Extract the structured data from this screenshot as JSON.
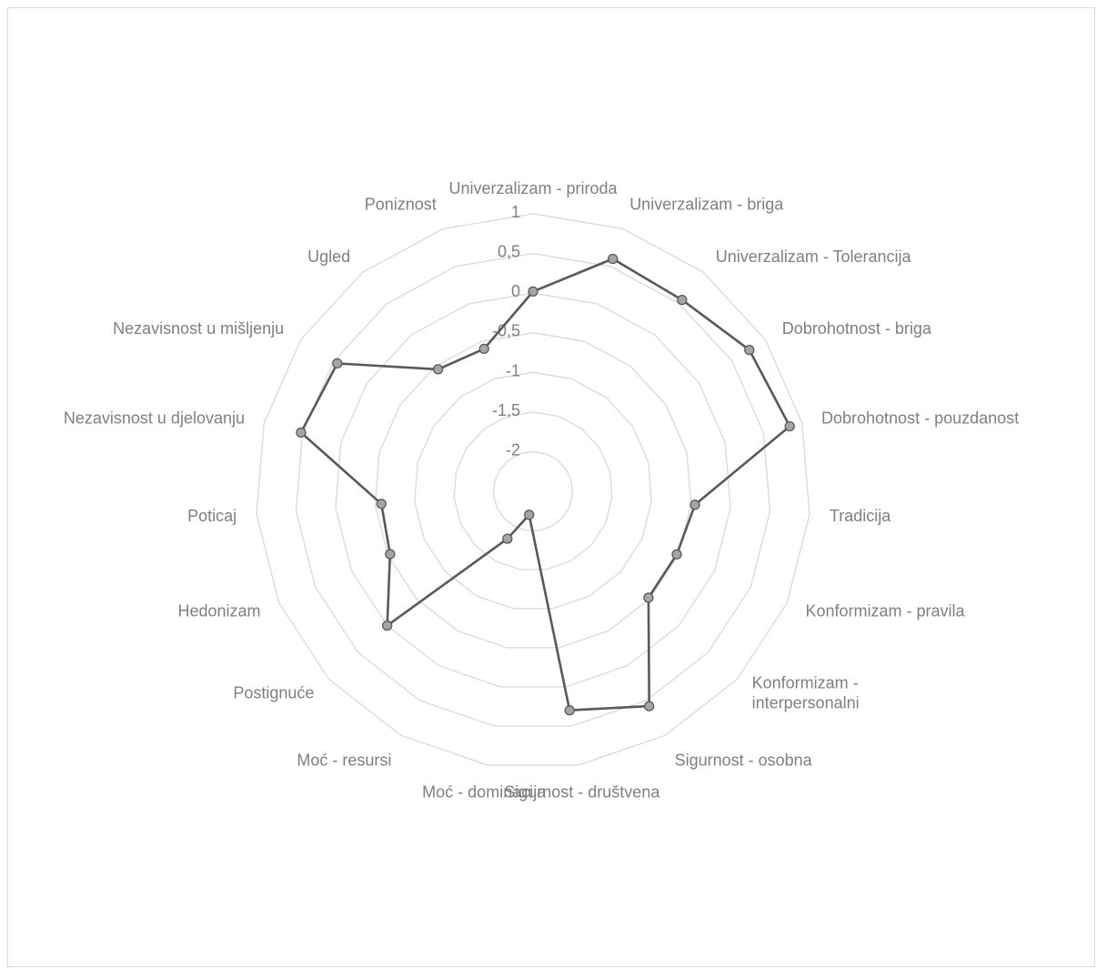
{
  "chart_data": {
    "type": "radar",
    "categories": [
      "Univerzalizam - priroda",
      "Univerzalizam - briga",
      "Univerzalizam - Tolerancija",
      "Dobrohotnost - briga",
      "Dobrohotnost - pouzdanost",
      "Tradicija",
      "Konformizam - pravila",
      "Konformizam - interpersonalni",
      "Sigurnost - osobna",
      "Sigurnost - društvena",
      "Moć - dominacija",
      "Moć - resursi",
      "Postignuće",
      "Hedonizam",
      "Poticaj",
      "Nezavisnost u djelovanju",
      "Nezavisnost u mišljenju",
      "Ugled",
      "Poniznost"
    ],
    "category_lines": [
      [
        "Univerzalizam - priroda"
      ],
      [
        "Univerzalizam - briga"
      ],
      [
        "Univerzalizam - Tolerancija"
      ],
      [
        "Dobrohotnost - briga"
      ],
      [
        "Dobrohotnost - pouzdanost"
      ],
      [
        "Tradicija"
      ],
      [
        "Konformizam - pravila"
      ],
      [
        "Konformizam -",
        "interpersonalni"
      ],
      [
        "Sigurnost - osobna"
      ],
      [
        "Sigurnost - društvena"
      ],
      [
        "Moć - dominacija"
      ],
      [
        "Moć - resursi"
      ],
      [
        "Postignuće"
      ],
      [
        "Hedonizam"
      ],
      [
        "Poticaj"
      ],
      [
        "Nezavisnost u djelovanju"
      ],
      [
        "Nezavisnost u mišljenju"
      ],
      [
        "Ugled"
      ],
      [
        "Poniznost"
      ]
    ],
    "series": [
      {
        "values": [
          0.02,
          0.6,
          0.56,
          0.76,
          0.84,
          -0.45,
          -0.52,
          -0.52,
          0.58,
          0.3,
          -2.2,
          -1.82,
          0.0,
          -0.53,
          -0.58,
          0.52,
          0.45,
          -0.55,
          -0.6
        ]
      }
    ],
    "rmin": -2.5,
    "rmax": 1,
    "ticks": [
      -2,
      -1.5,
      -1,
      -0.5,
      0,
      0.5,
      1
    ],
    "tick_labels": [
      "-2",
      "-1,5",
      "-1",
      "-0,5",
      "0",
      "0,5",
      "1"
    ],
    "grid": true,
    "legend": "none",
    "colors": {
      "line": "#595959",
      "marker_fill": "#a5a5a5",
      "marker_stroke": "#595959",
      "grid": "#d9d9d9",
      "text": "#7f7f7f"
    }
  }
}
